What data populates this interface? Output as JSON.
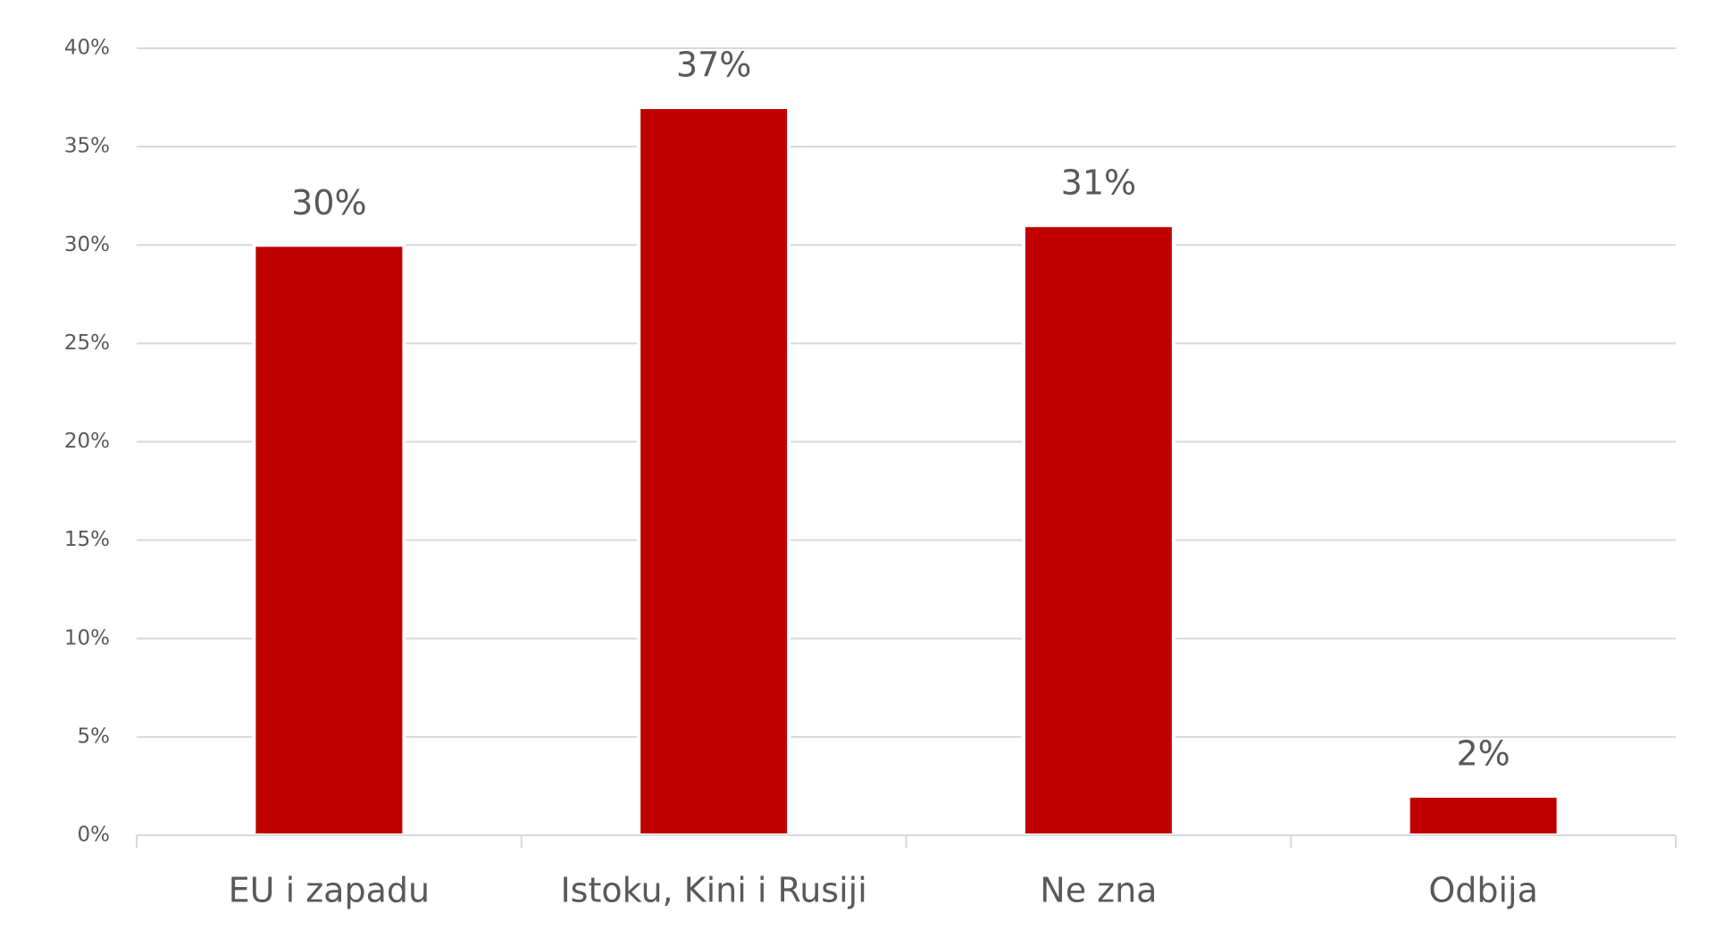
{
  "chart_data": {
    "type": "bar",
    "categories": [
      "EU i zapadu",
      "Istoku, Kini i Rusiji",
      "Ne zna",
      "Odbija"
    ],
    "values": [
      30,
      37,
      31,
      2
    ],
    "value_labels": [
      "30%",
      "37%",
      "31%",
      "2%"
    ],
    "color": "#c00000",
    "ylim": [
      0,
      40
    ],
    "yticks": [
      {
        "value": 0,
        "label": "0%"
      },
      {
        "value": 5,
        "label": "5%"
      },
      {
        "value": 10,
        "label": "10%"
      },
      {
        "value": 15,
        "label": "15%"
      },
      {
        "value": 20,
        "label": "20%"
      },
      {
        "value": 25,
        "label": "25%"
      },
      {
        "value": 30,
        "label": "30%"
      },
      {
        "value": 35,
        "label": "35%"
      },
      {
        "value": 40,
        "label": "40%"
      }
    ],
    "grid": true
  }
}
